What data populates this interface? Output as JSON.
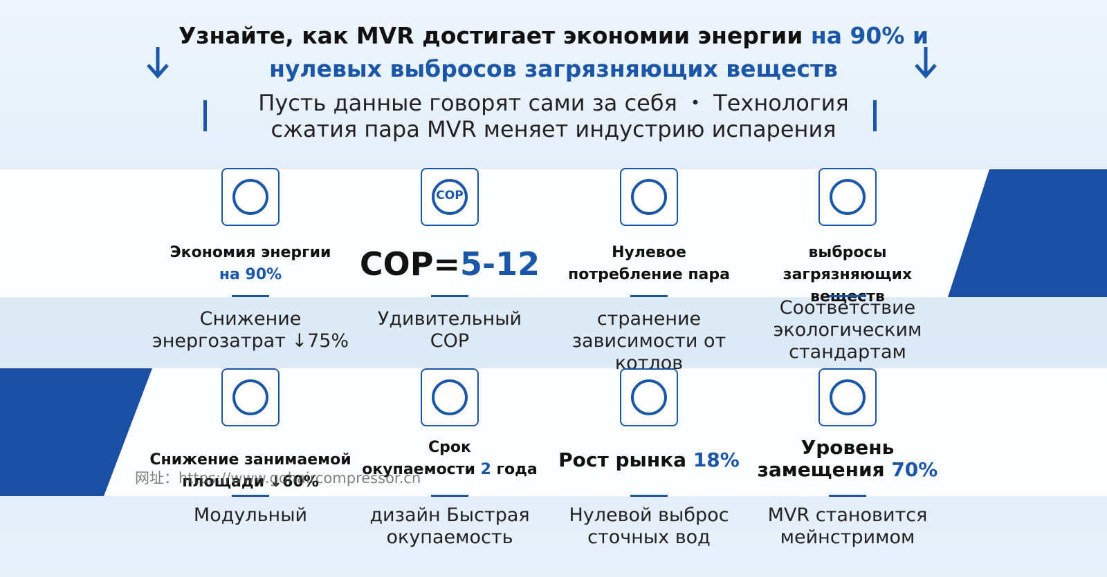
{
  "header": {
    "title": [
      {
        "text": "Узнайте, как MVR достигает экономии энергии ",
        "accent": false
      },
      {
        "text": "на 90% и",
        "accent": true
      }
    ],
    "title_line2": "нулевых выбросов загрязняющих веществ",
    "subtitle": [
      "Пусть данные говорят сами за себя ・ Технология",
      "сжатия пара MVR меняет индустрию испарения"
    ]
  },
  "cards": [
    {
      "heading": [
        {
          "text": "Экономия энергии",
          "accent": false
        },
        {
          "text": "на 90%",
          "accent": true
        }
      ],
      "description": [
        "Снижение",
        "энергозатрат ↓75%"
      ]
    },
    {
      "icon_label": "COP",
      "heading": [
        {
          "text": "COP=",
          "accent": false
        },
        {
          "text": "5-12",
          "accent": true
        }
      ],
      "description": [
        "Удивительный",
        "COP"
      ]
    },
    {
      "heading": [
        {
          "text": "Нулевое",
          "accent": false
        },
        {
          "text": "потребление пара",
          "accent": false
        }
      ],
      "description": [
        "странение",
        "зависимости от котлов"
      ]
    },
    {
      "heading": [
        {
          "text": "выбросы",
          "accent": false
        },
        {
          "text": "загрязняющих веществ",
          "accent": false
        }
      ],
      "description": [
        "Соответствие",
        "экологическим",
        "стандартам"
      ]
    },
    {
      "heading": [
        {
          "text": "Снижение занимаемой",
          "accent": false
        },
        {
          "text": "площади ↓60%",
          "accent": false
        }
      ],
      "description": [
        "Модульный"
      ]
    },
    {
      "heading": [
        {
          "text": "Срок",
          "accent": false
        },
        {
          "text": "окупаемости ",
          "accent": false
        },
        {
          "text": "2",
          "accent": true
        },
        {
          "text": " года",
          "accent": false
        }
      ],
      "description": [
        "дизайн Быстрая",
        "окупаемость"
      ]
    },
    {
      "heading": [
        {
          "text": "Рост рынка ",
          "accent": false
        },
        {
          "text": "18%",
          "accent": true
        }
      ],
      "description": [
        "Нулевой выброс",
        "сточных вод"
      ]
    },
    {
      "heading": [
        {
          "text": "Уровень",
          "accent": false
        },
        {
          "text": "замещения ",
          "accent": false
        },
        {
          "text": "70%",
          "accent": true
        }
      ],
      "description": [
        "MVR становится",
        "мейнстримом"
      ]
    }
  ],
  "watermark": "网址：https://www.gohaircompressor.cn"
}
